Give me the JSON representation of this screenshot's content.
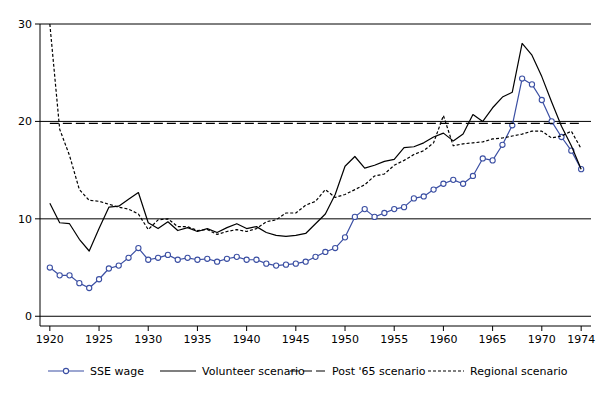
{
  "chart_data": {
    "type": "line",
    "x": [
      1920,
      1921,
      1922,
      1923,
      1924,
      1925,
      1926,
      1927,
      1928,
      1929,
      1930,
      1931,
      1932,
      1933,
      1934,
      1935,
      1936,
      1937,
      1938,
      1939,
      1940,
      1941,
      1942,
      1943,
      1944,
      1945,
      1946,
      1947,
      1948,
      1949,
      1950,
      1951,
      1952,
      1953,
      1954,
      1955,
      1956,
      1957,
      1958,
      1959,
      1960,
      1961,
      1962,
      1963,
      1964,
      1965,
      1966,
      1967,
      1968,
      1969,
      1970,
      1971,
      1972,
      1973,
      1974
    ],
    "series": [
      {
        "name": "SSE wage",
        "color": "#3b4fa3",
        "marker": "circle",
        "line_style": "solid",
        "values": [
          5.0,
          4.2,
          4.2,
          3.4,
          2.9,
          3.8,
          4.9,
          5.2,
          6.0,
          7.0,
          5.8,
          6.0,
          6.3,
          5.8,
          6.0,
          5.8,
          5.9,
          5.6,
          5.9,
          6.1,
          5.8,
          5.8,
          5.4,
          5.2,
          5.3,
          5.4,
          5.6,
          6.1,
          6.6,
          7.0,
          8.1,
          10.2,
          11.0,
          10.2,
          10.6,
          11.0,
          11.2,
          12.1,
          12.3,
          13.0,
          13.6,
          14.0,
          13.6,
          14.4,
          16.2,
          16.0,
          17.6,
          19.6,
          24.4,
          23.8,
          22.2,
          20.0,
          18.4,
          17.0,
          15.1
        ]
      },
      {
        "name": "Volunteer scenario",
        "color": "#000000",
        "line_style": "solid",
        "values": [
          11.6,
          9.6,
          9.5,
          7.9,
          6.7,
          9.0,
          11.2,
          11.3,
          12.0,
          12.7,
          9.6,
          9.0,
          9.7,
          8.8,
          9.1,
          8.7,
          9.0,
          8.6,
          9.1,
          9.5,
          9.0,
          9.2,
          8.6,
          8.3,
          8.2,
          8.3,
          8.5,
          9.5,
          10.5,
          12.5,
          15.4,
          16.4,
          15.2,
          15.5,
          15.9,
          16.1,
          17.3,
          17.4,
          17.8,
          18.4,
          18.8,
          18.0,
          18.7,
          20.7,
          20.0,
          21.4,
          22.5,
          23.0,
          28.0,
          26.8,
          24.6,
          22.0,
          19.5,
          17.5,
          15.1
        ]
      },
      {
        "name": "Post '65 scenario",
        "color": "#000000",
        "line_style": "dashed",
        "values": [
          19.8,
          19.8,
          19.8,
          19.8,
          19.8,
          19.8,
          19.8,
          19.8,
          19.8,
          19.8,
          19.8,
          19.8,
          19.8,
          19.8,
          19.8,
          19.8,
          19.8,
          19.8,
          19.8,
          19.8,
          19.8,
          19.8,
          19.8,
          19.8,
          19.8,
          19.8,
          19.8,
          19.8,
          19.8,
          19.8,
          19.8,
          19.8,
          19.8,
          19.8,
          19.8,
          19.8,
          19.8,
          19.8,
          19.8,
          19.8,
          19.8,
          19.8,
          19.8,
          19.8,
          19.8,
          19.8,
          19.8,
          19.8,
          19.8,
          19.8,
          19.8,
          19.8,
          19.8,
          19.8,
          19.8
        ]
      },
      {
        "name": "Regional scenario",
        "color": "#000000",
        "line_style": "dotted",
        "values": [
          30.0,
          19.2,
          16.5,
          13.0,
          11.9,
          11.8,
          11.5,
          11.2,
          11.0,
          10.5,
          8.9,
          9.9,
          10.0,
          9.2,
          9.2,
          8.8,
          8.9,
          8.4,
          8.7,
          8.9,
          8.7,
          9.0,
          9.7,
          9.9,
          10.6,
          10.6,
          11.4,
          11.8,
          13.0,
          12.2,
          12.5,
          13.0,
          13.5,
          14.4,
          14.6,
          15.5,
          16.0,
          16.6,
          17.0,
          17.8,
          20.6,
          17.5,
          17.7,
          17.8,
          17.9,
          18.2,
          18.3,
          18.5,
          18.7,
          19.0,
          19.0,
          18.3,
          18.5,
          19.0,
          17.2
        ]
      }
    ],
    "xlim": [
      1919,
      1975
    ],
    "xticks": [
      1920,
      1925,
      1930,
      1935,
      1940,
      1945,
      1950,
      1955,
      1960,
      1965,
      1970,
      1974
    ],
    "ylim": [
      -1,
      30
    ],
    "yticks": [
      0,
      10,
      20,
      30
    ],
    "grid": true,
    "legend": "bottom"
  }
}
